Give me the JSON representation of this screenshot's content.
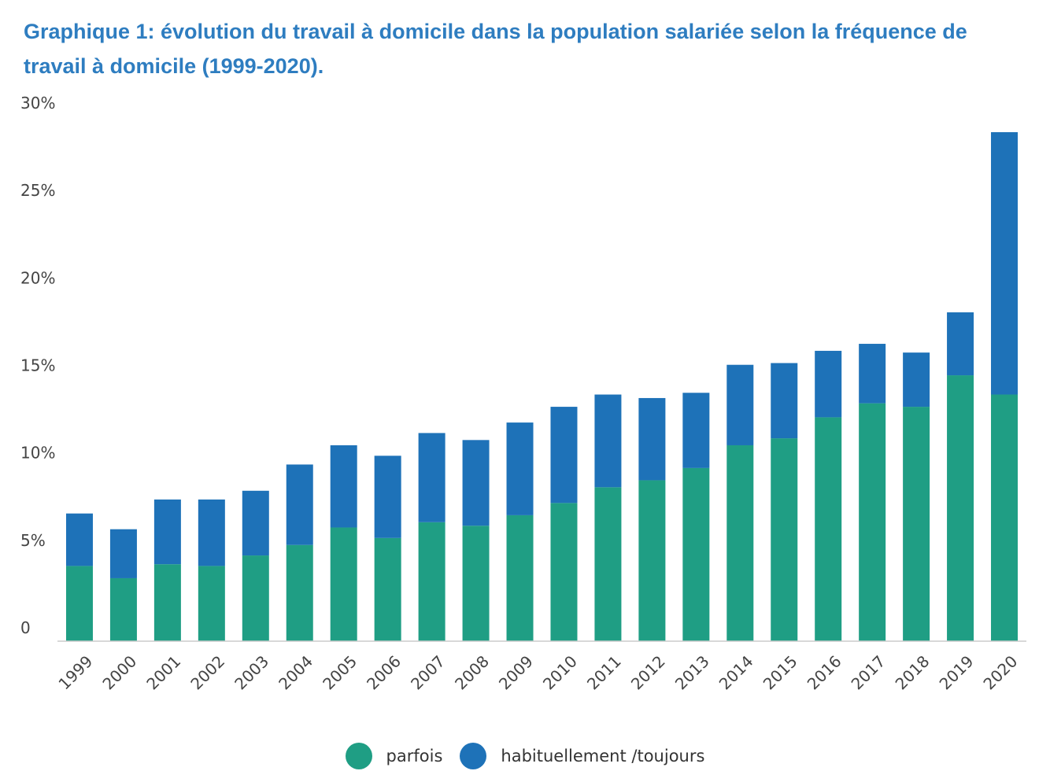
{
  "chart_data": {
    "type": "bar",
    "stacked": true,
    "title": "Graphique 1: évolution du travail à domicile dans la population salariée selon la fréquence de travail à domicile (1999-2020).",
    "categories": [
      "1999",
      "2000",
      "2001",
      "2002",
      "2003",
      "2004",
      "2005",
      "2006",
      "2007",
      "2008",
      "2009",
      "2010",
      "2011",
      "2012",
      "2013",
      "2014",
      "2015",
      "2016",
      "2017",
      "2018",
      "2019",
      "2020"
    ],
    "series": [
      {
        "name": "parfois",
        "color": "#1f9e84",
        "values": [
          4.3,
          3.6,
          4.4,
          4.3,
          4.9,
          5.5,
          6.5,
          5.9,
          6.8,
          6.6,
          7.2,
          7.9,
          8.8,
          9.2,
          9.9,
          11.2,
          11.6,
          12.8,
          13.6,
          13.4,
          15.2,
          14.1
        ]
      },
      {
        "name": "habituellement /toujours",
        "color": "#1e72b8",
        "values": [
          3.0,
          2.8,
          3.7,
          3.8,
          3.7,
          4.6,
          4.7,
          4.7,
          5.1,
          4.9,
          5.3,
          5.5,
          5.3,
          4.7,
          4.3,
          4.6,
          4.3,
          3.8,
          3.4,
          3.1,
          3.6,
          15.0
        ]
      }
    ],
    "y_ticks": [
      "0",
      "5%",
      "10%",
      "15%",
      "20%",
      "25%",
      "30%"
    ],
    "ylim": [
      0,
      30
    ],
    "xlabel": "",
    "ylabel": "",
    "grid": false,
    "legend_position": "bottom-center",
    "baseline_color": "#cccccc"
  }
}
